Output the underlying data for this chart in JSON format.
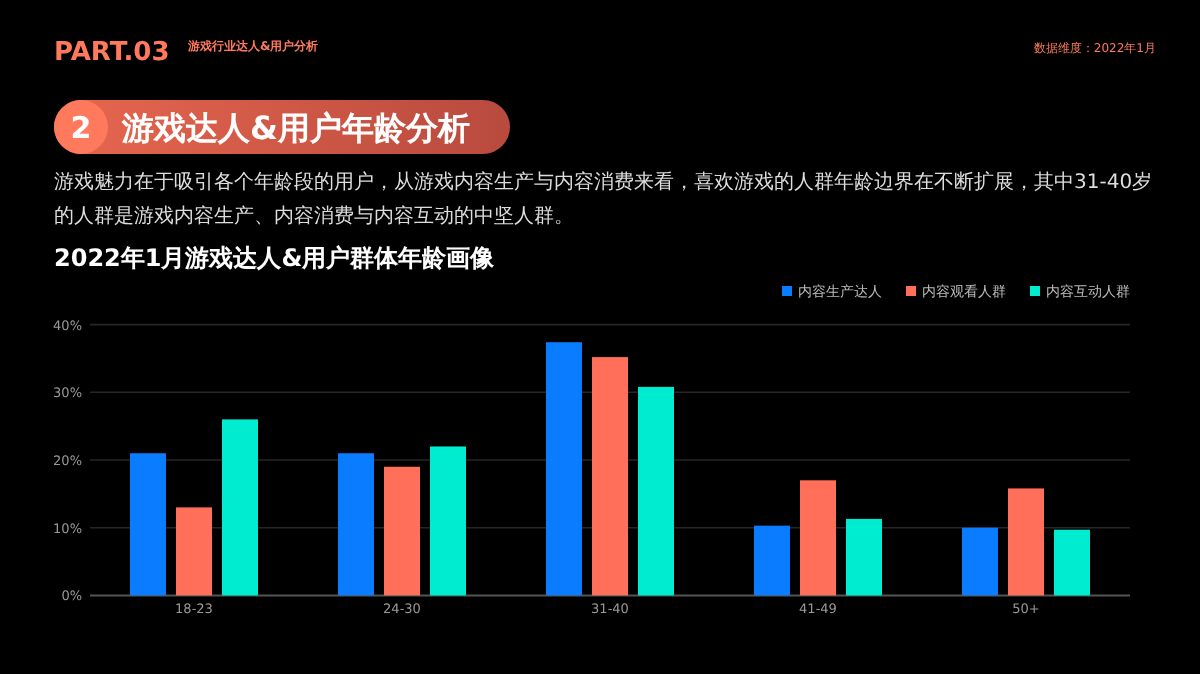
{
  "chart_data": {
    "type": "bar",
    "title": "2022年1月游戏达人&用户群体年龄画像",
    "annotations": [
      "PART.03",
      "游戏行业达人&用户分析",
      "数据维度：2022年1月",
      "2",
      "游戏达人&用户年龄分析",
      "游戏魅力在于吸引各个年龄段的用户，从游戏内容生产与内容消费来看，喜欢游戏的人群年龄边界在不断扩展，其中31-40岁的人群是游戏内容生产、内容消费与内容互动的中坚人群。"
    ],
    "categories": [
      "18-23",
      "24-30",
      "31-40",
      "41-49",
      "50+"
    ],
    "series": [
      {
        "name": "内容生产达人",
        "color": "#0a7cff",
        "values": [
          21,
          21,
          37.4,
          10.3,
          10
        ]
      },
      {
        "name": "内容观看人群",
        "color": "#ff6f5a",
        "values": [
          13,
          19,
          35.2,
          17,
          15.8
        ]
      },
      {
        "name": "内容互动人群",
        "color": "#00ecd0",
        "values": [
          26,
          22,
          30.8,
          11.3,
          9.7
        ]
      }
    ],
    "ylim": [
      0,
      40
    ],
    "yticks": [
      {
        "value": 0,
        "label": "0%"
      },
      {
        "value": 10,
        "label": "10%"
      },
      {
        "value": 20,
        "label": "20%"
      },
      {
        "value": 30,
        "label": "30%"
      },
      {
        "value": 40,
        "label": "40%"
      }
    ],
    "grid": "y",
    "legend": "top right"
  }
}
